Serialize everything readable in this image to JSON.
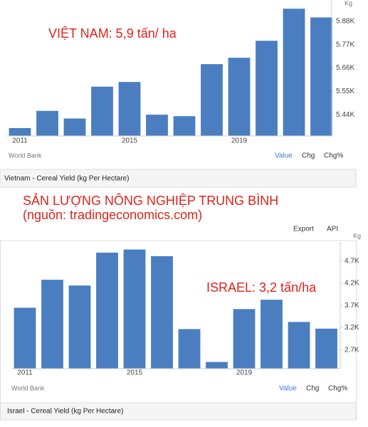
{
  "heading": "SẢN LƯỢNG NÔNG NGHIỆP TRUNG BÌNH",
  "subheading": "(nguồn: tradingeconomics.com)",
  "toolbar": [
    "Export",
    "API"
  ],
  "chart_data": [
    {
      "type": "bar",
      "unit": "Kg",
      "annotation": "VIỆT NAM: 5,9 tấn/ ha",
      "source": "World Bank",
      "controls": [
        "Value",
        "Chg",
        "Chg%"
      ],
      "caption": "Vietnam - Cereal Yield (kg Per Hectare)",
      "categories": [
        "2011",
        null,
        null,
        null,
        "2015",
        null,
        null,
        null,
        "2019",
        null,
        null,
        null
      ],
      "values": [
        5377,
        5458,
        5422,
        5572,
        5594,
        5440,
        5433,
        5678,
        5708,
        5788,
        5939,
        5898
      ],
      "color": "#4a7ec0",
      "ylim": [
        5340,
        5980
      ],
      "yticks": [
        {
          "value": 5440,
          "label": "5.44K"
        },
        {
          "value": 5550,
          "label": "5.55K"
        },
        {
          "value": 5660,
          "label": "5.66K"
        },
        {
          "value": 5770,
          "label": "5.77K"
        },
        {
          "value": 5880,
          "label": "5.88K"
        }
      ]
    },
    {
      "type": "bar",
      "unit": "Kg",
      "annotation": "ISRAEL: 3,2 tấn/ha",
      "source": "World Bank",
      "controls": [
        "Value",
        "Chg",
        "Chg%"
      ],
      "caption": "Israel - Cereal Yield (kg Per Hectare)",
      "categories": [
        "2011",
        null,
        null,
        null,
        "2015",
        null,
        null,
        null,
        "2019",
        null,
        null,
        null
      ],
      "values": [
        3650,
        4280,
        4150,
        4890,
        4960,
        4810,
        3170,
        2430,
        3620,
        3830,
        3330,
        3180
      ],
      "color": "#4a7ec0",
      "ylim": [
        2280,
        5130
      ],
      "yticks": [
        {
          "value": 2700,
          "label": "2.7K"
        },
        {
          "value": 3200,
          "label": "3.2K"
        },
        {
          "value": 3700,
          "label": "3.7K"
        },
        {
          "value": 4200,
          "label": "4.2K"
        },
        {
          "value": 4700,
          "label": "4.7K"
        }
      ]
    }
  ]
}
